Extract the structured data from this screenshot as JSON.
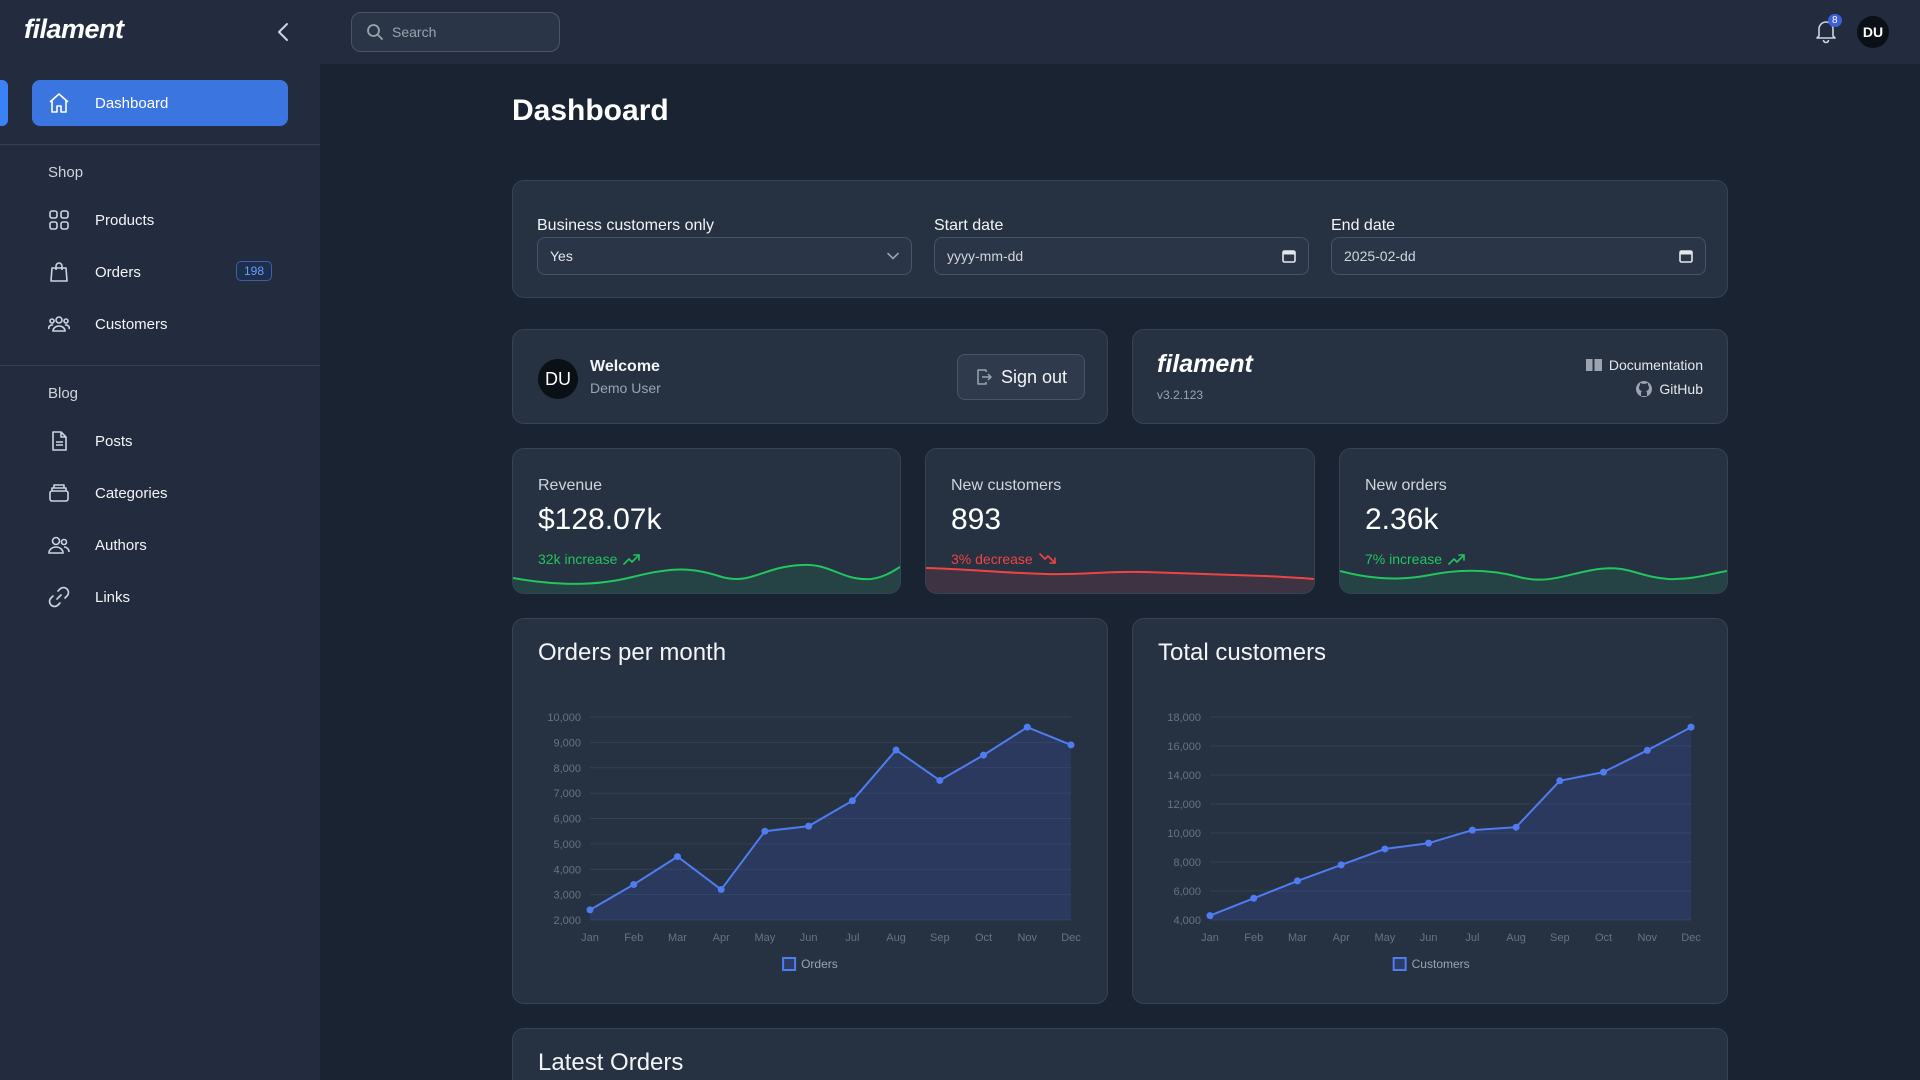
{
  "sidebar": {
    "brand": "filament",
    "nav": [
      {
        "label": "Dashboard",
        "icon": "home-icon",
        "active": true
      },
      {
        "label": "Products",
        "icon": "grid-icon"
      },
      {
        "label": "Orders",
        "icon": "shopping-bag-icon",
        "badge": "198"
      },
      {
        "label": "Customers",
        "icon": "users-group-icon"
      },
      {
        "label": "Posts",
        "icon": "document-icon"
      },
      {
        "label": "Categories",
        "icon": "stack-icon"
      },
      {
        "label": "Authors",
        "icon": "users-icon"
      },
      {
        "label": "Links",
        "icon": "link-icon"
      }
    ],
    "groups": {
      "shop": "Shop",
      "blog": "Blog"
    }
  },
  "topbar": {
    "search_placeholder": "Search",
    "notifications_count": "8",
    "avatar_initials": "DU"
  },
  "page": {
    "title": "Dashboard"
  },
  "filters": {
    "business": {
      "label": "Business customers only",
      "value": "Yes"
    },
    "start": {
      "label": "Start date",
      "value": "yyyy-mm-dd"
    },
    "end": {
      "label": "End date",
      "value": "2025-02-dd"
    }
  },
  "account": {
    "initials": "DU",
    "title": "Welcome",
    "name": "Demo User",
    "sign_out": "Sign out"
  },
  "filament_info": {
    "brand": "filament",
    "version": "v3.2.123",
    "docs": "Documentation",
    "github": "GitHub"
  },
  "stats": [
    {
      "label": "Revenue",
      "value": "$128.07k",
      "desc": "32k increase",
      "trend": "up",
      "color": "#22c55e"
    },
    {
      "label": "New customers",
      "value": "893",
      "desc": "3% decrease",
      "trend": "down",
      "color": "#ef4444"
    },
    {
      "label": "New orders",
      "value": "2.36k",
      "desc": "7% increase",
      "trend": "up",
      "color": "#22c55e"
    }
  ],
  "colors": {
    "accent": "#3b82f6",
    "success": "#22c55e",
    "danger": "#ef4444"
  },
  "chart_data": [
    {
      "type": "line",
      "title": "Orders per month",
      "categories": [
        "Jan",
        "Feb",
        "Mar",
        "Apr",
        "May",
        "Jun",
        "Jul",
        "Aug",
        "Sep",
        "Oct",
        "Nov",
        "Dec"
      ],
      "series": [
        {
          "name": "Orders",
          "values": [
            2400,
            3400,
            4500,
            3200,
            5500,
            5700,
            6700,
            8700,
            7500,
            8500,
            9600,
            8900
          ]
        }
      ],
      "yticks": [
        2000,
        3000,
        4000,
        5000,
        6000,
        7000,
        8000,
        9000,
        10000
      ],
      "ytick_labels": [
        "2,000",
        "3,000",
        "4,000",
        "5,000",
        "6,000",
        "7,000",
        "8,000",
        "9,000",
        "10,000"
      ],
      "ylim": [
        2000,
        10000
      ]
    },
    {
      "type": "line",
      "title": "Total customers",
      "categories": [
        "Jan",
        "Feb",
        "Mar",
        "Apr",
        "May",
        "Jun",
        "Jul",
        "Aug",
        "Sep",
        "Oct",
        "Nov",
        "Dec"
      ],
      "series": [
        {
          "name": "Customers",
          "values": [
            4300,
            5500,
            6700,
            7800,
            8900,
            9300,
            10200,
            10400,
            13600,
            14200,
            15700,
            17300
          ]
        }
      ],
      "yticks": [
        4000,
        6000,
        8000,
        10000,
        12000,
        14000,
        16000,
        18000
      ],
      "ytick_labels": [
        "4,000",
        "6,000",
        "8,000",
        "10,000",
        "12,000",
        "14,000",
        "16,000",
        "18,000"
      ],
      "ylim": [
        4000,
        18000
      ]
    }
  ],
  "latest_orders": {
    "title": "Latest Orders"
  }
}
